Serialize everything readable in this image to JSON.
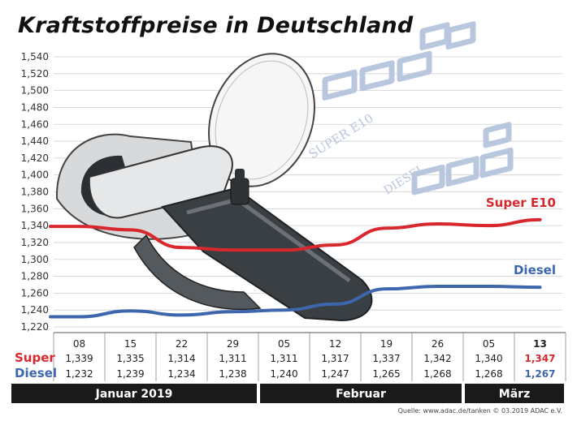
{
  "title": "Kraftstoffpreise in Deutschland",
  "source": "Quelle: www.adac.de/tanken  © 03.2019  ADAC e.V.",
  "decor": {
    "super_sign": "SUPER E10",
    "diesel_sign": "DIESEL",
    "digits": "888"
  },
  "colors": {
    "super": "#d8282d",
    "diesel": "#3d66ad",
    "month_band": "#1a1a1a",
    "grid": "#cfcfcf",
    "pump": "#3a3f44"
  },
  "chart_data": {
    "type": "line",
    "title": "Kraftstoffpreise in Deutschland",
    "ylim": [
      1.22,
      1.54
    ],
    "yticks": [
      "1,540",
      "1,520",
      "1,500",
      "1,480",
      "1,460",
      "1,440",
      "1,420",
      "1,400",
      "1,380",
      "1,360",
      "1,340",
      "1,320",
      "1,300",
      "1,280",
      "1,260",
      "1,240",
      "1,220"
    ],
    "ytick_values": [
      1.54,
      1.52,
      1.5,
      1.48,
      1.46,
      1.44,
      1.42,
      1.4,
      1.38,
      1.36,
      1.34,
      1.32,
      1.3,
      1.28,
      1.26,
      1.24,
      1.22
    ],
    "x": [
      "08",
      "15",
      "22",
      "29",
      "05",
      "12",
      "19",
      "26",
      "05",
      "13"
    ],
    "months": [
      {
        "label": "Januar 2019",
        "count": 4
      },
      {
        "label": "Februar",
        "count": 4
      },
      {
        "label": "März",
        "count": 2
      }
    ],
    "series": [
      {
        "name": "Super E10",
        "row_label": "Super",
        "values": [
          1.339,
          1.335,
          1.314,
          1.311,
          1.311,
          1.317,
          1.337,
          1.342,
          1.34,
          1.347
        ],
        "labels": [
          "1,339",
          "1,335",
          "1,314",
          "1,311",
          "1,311",
          "1,317",
          "1,337",
          "1,342",
          "1,340",
          "1,347"
        ]
      },
      {
        "name": "Diesel",
        "row_label": "Diesel",
        "values": [
          1.232,
          1.239,
          1.234,
          1.238,
          1.24,
          1.247,
          1.265,
          1.268,
          1.268,
          1.267
        ],
        "labels": [
          "1,232",
          "1,239",
          "1,234",
          "1,238",
          "1,240",
          "1,247",
          "1,265",
          "1,268",
          "1,268",
          "1,267"
        ]
      }
    ],
    "grid": true,
    "legend": "inline-right",
    "highlight_last": true
  }
}
